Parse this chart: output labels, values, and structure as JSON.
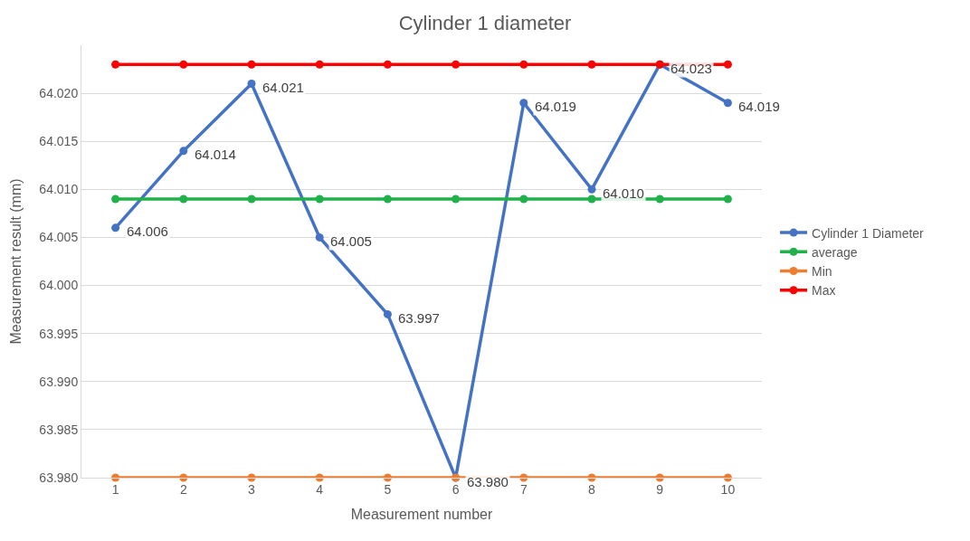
{
  "chart_data": {
    "type": "line",
    "title": "Cylinder 1 diameter",
    "xlabel": "Measurement number",
    "ylabel": "Measurement result (mm)",
    "categories": [
      "1",
      "2",
      "3",
      "4",
      "5",
      "6",
      "7",
      "8",
      "9",
      "10"
    ],
    "series": [
      {
        "name": "Cylinder 1 Diameter",
        "color": "#4472c4",
        "values": [
          64.006,
          64.014,
          64.021,
          64.005,
          63.997,
          63.98,
          64.019,
          64.01,
          64.023,
          64.019
        ],
        "value_labels": [
          "64.006",
          "64.014",
          "64.021",
          "64.005",
          "63.997",
          "63.980",
          "64.019",
          "64.010",
          "64.023",
          "64.019"
        ]
      },
      {
        "name": "average",
        "color": "#21b14a",
        "values": [
          64.009,
          64.009,
          64.009,
          64.009,
          64.009,
          64.009,
          64.009,
          64.009,
          64.009,
          64.009
        ]
      },
      {
        "name": "Min",
        "color": "#ed7d31",
        "values": [
          63.98,
          63.98,
          63.98,
          63.98,
          63.98,
          63.98,
          63.98,
          63.98,
          63.98,
          63.98
        ]
      },
      {
        "name": "Max",
        "color": "#ff0000",
        "values": [
          64.023,
          64.023,
          64.023,
          64.023,
          64.023,
          64.023,
          64.023,
          64.023,
          64.023,
          64.023
        ]
      }
    ],
    "ylim": [
      63.98,
      64.025
    ],
    "yticks": [
      {
        "value": 63.98,
        "label": "63.980"
      },
      {
        "value": 63.985,
        "label": "63.985"
      },
      {
        "value": 63.99,
        "label": "63.990"
      },
      {
        "value": 63.995,
        "label": "63.995"
      },
      {
        "value": 64.0,
        "label": "64.000"
      },
      {
        "value": 64.005,
        "label": "64.005"
      },
      {
        "value": 64.01,
        "label": "64.010"
      },
      {
        "value": 64.015,
        "label": "64.015"
      },
      {
        "value": 64.02,
        "label": "64.020"
      }
    ],
    "grid": "y",
    "legend": "right",
    "marker": "circle",
    "line_style": "solid"
  }
}
